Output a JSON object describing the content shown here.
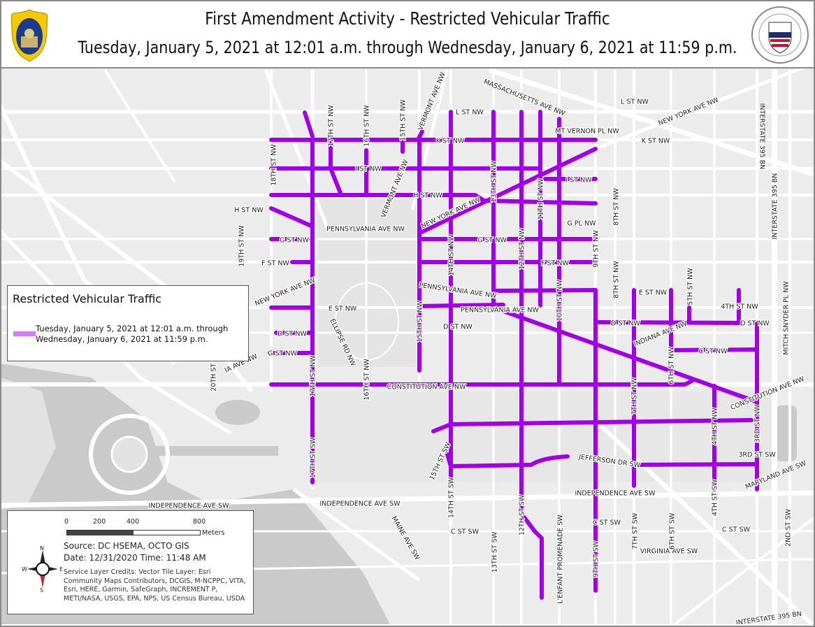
{
  "header": {
    "title": "First Amendment Activity - Restricted Vehicular Traffic",
    "subtitle": "Tuesday, January 5, 2021 at 12:01 a.m. through Wednesday, January 6, 2021 at 11:59 p.m.",
    "left_logo": "METROPOLITAN POLICE DISTRICT OF COLUMBIA",
    "right_logo": "HOMELAND SECURITY AND EMERGENCY MANAGEMENT AGENCY DISTRICT OF COLUMBIA HSEMA"
  },
  "colors": {
    "restricted": "#A100E6",
    "legend_swatch": "#D27CF5",
    "land": "#ECECEC",
    "water": "#C9C9C9",
    "road": "#FFFFFF"
  },
  "legend": {
    "title": "Restricted Vehicular Traffic",
    "entry": "Tuesday, January 5, 2021 at 12:01 a.m. through Wednesday, January 6, 2021 at 11:59 p.m."
  },
  "scale": {
    "ticks": [
      "0",
      "200",
      "400",
      "800"
    ],
    "unit": "Meters"
  },
  "info": {
    "source": "Source: DC HSEMA, OCTO GIS",
    "date": "Date: 12/31/2020 Time: 11:48 AM",
    "credits": "Service Layer Credits: Vector Tile Layer: Esri Community Maps Contributors, DCGIS, M-NCPPC, VITA, Esri, HERE, Garmin, SafeGraph, INCREMENT P, METI/NASA, USGS, EPA, NPS, US Census Bureau, USDA"
  },
  "compass": {
    "n": "N",
    "s": "S",
    "e": "E",
    "w": "W"
  },
  "map": {
    "labels": [
      "L ST NW",
      "MASSACHUSETTS AVE NW",
      "L ST NW",
      "NEW YORK AVE NW",
      "INTERSTATE 395 BN",
      "MT VERNON PL NW",
      "K ST NW",
      "K ST NW",
      "I ST NW",
      "I ST NW",
      "H ST NW",
      "H ST NW",
      "G PL NW",
      "PENNSYLVANIA AVE NW",
      "G ST NW",
      "G ST NW",
      "F ST NW",
      "F ST NW",
      "NEW YORK AVE NW",
      "E ST NW",
      "D ST NW",
      "G ST NW",
      "PENNSYLVANIA AVE NW",
      "PENNSYLVANIA AVE NW",
      "D ST NW",
      "E ST NW",
      "4TH ST NW",
      "D ST NW",
      "D ST NW",
      "INDIANA AVE NW",
      "C ST NW",
      "CONSTITUTION AVE NW",
      "CONSTITUTION AVE NW",
      "JEFFERSON DR SW",
      "3RD ST SW",
      "MARYLAND AVE SW",
      "INDEPENDENCE AVE SW",
      "INDEPENDENCE AVE SW",
      "INDEPENDENCE AVE SW",
      "C ST SW",
      "C ST SW",
      "C ST SW",
      "VIRGINIA AVE SW",
      "MAINE AVE SW",
      "INTERSTATE 395 BN",
      "18TH ST NW",
      "17TH ST NW",
      "16TH ST NW",
      "15TH ST NW",
      "VERMONT AVE NW",
      "VERMONT AVE NW",
      "NEW YORK AVE NW",
      "13TH ST NW",
      "11TH ST NW",
      "14TH ST NW",
      "12TH ST NW",
      "10TH ST NW",
      "9TH ST NW",
      "8TH ST NW",
      "8TH ST NW",
      "19TH ST NW",
      "20TH ST NW",
      "15TH ST NW",
      "ELLIPSE RD NW",
      "16TH ST NW",
      "17TH ST NW",
      "17TH ST SW",
      "5TH ST NW",
      "7TH ST NW",
      "6TH ST NW",
      "4TH ST NW",
      "3RD ST NW",
      "INTERSTATE 395 BN",
      "MITCH SNYDER PL NW",
      "15TH ST SW",
      "14TH ST SW",
      "12TH ST SW",
      "13TH ST SW",
      "L'ENFANT PROMENADE SW",
      "9TH ST SW",
      "7TH ST SW",
      "6TH ST SW",
      "4TH ST SW",
      "2ND ST SW",
      "IA AVE NW"
    ]
  }
}
